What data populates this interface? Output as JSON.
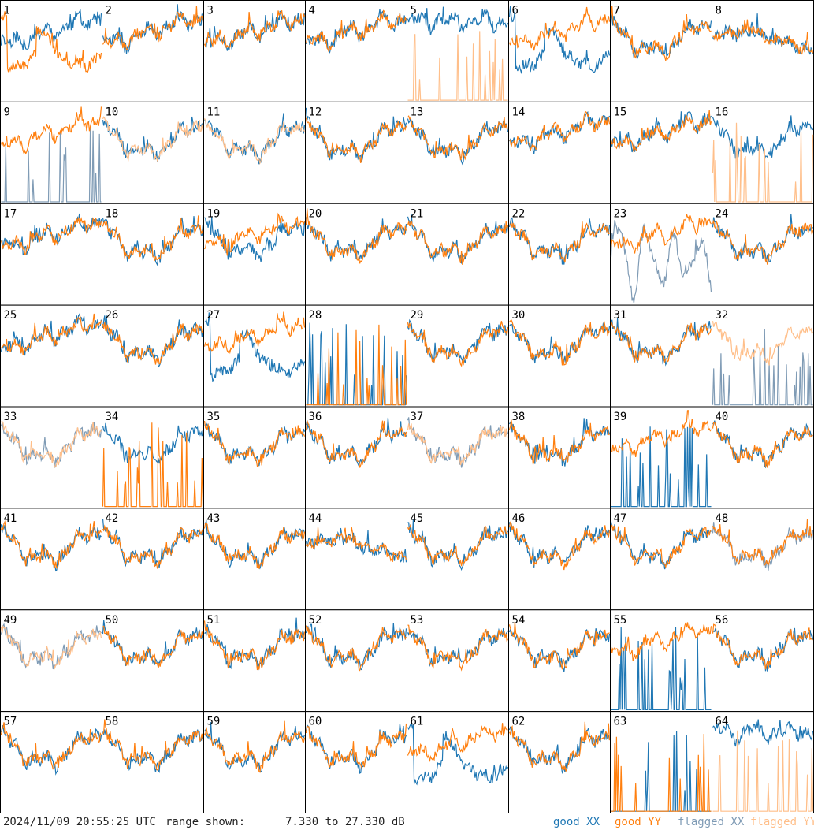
{
  "footer": {
    "timestamp": "2024/11/09 20:55:25 UTC",
    "range_label": "range shown:",
    "range_text": "7.330 to 27.330 dB"
  },
  "legend": [
    {
      "name": "good XX",
      "color": "#1f77b4"
    },
    {
      "name": "good YY",
      "color": "#ff7f0e"
    },
    {
      "name": "flagged XX",
      "color": "#7f9bb5"
    },
    {
      "name": "flagged YY",
      "color": "#ffbf8a"
    }
  ],
  "chart_data": {
    "type": "line",
    "title": "",
    "grid_rows": 8,
    "grid_cols": 8,
    "ylim": [
      7.33,
      27.33
    ],
    "y_unit": "dB",
    "tiles": [
      {
        "id": "1",
        "xx": "good",
        "yy": "good",
        "xx_profile": "rising",
        "yy_profile": "dip"
      },
      {
        "id": "2",
        "xx": "good",
        "yy": "good",
        "xx_profile": "rising",
        "yy_profile": "rising"
      },
      {
        "id": "3",
        "xx": "good",
        "yy": "good",
        "xx_profile": "rising",
        "yy_profile": "rising"
      },
      {
        "id": "4",
        "xx": "good",
        "yy": "good",
        "xx_profile": "rising",
        "yy_profile": "rising"
      },
      {
        "id": "5",
        "xx": "good",
        "yy": "flagged",
        "xx_profile": "high",
        "yy_profile": "spikes"
      },
      {
        "id": "6",
        "xx": "good",
        "yy": "good",
        "xx_profile": "dip",
        "yy_profile": "rising"
      },
      {
        "id": "7",
        "xx": "good",
        "yy": "good",
        "xx_profile": "valley",
        "yy_profile": "valley"
      },
      {
        "id": "8",
        "xx": "good",
        "yy": "good",
        "xx_profile": "flat",
        "yy_profile": "flat"
      },
      {
        "id": "9",
        "xx": "flagged",
        "yy": "good",
        "xx_profile": "spikes",
        "yy_profile": "rising"
      },
      {
        "id": "10",
        "xx": "good",
        "yy": "flagged",
        "xx_profile": "valley",
        "yy_profile": "valley"
      },
      {
        "id": "11",
        "xx": "good",
        "yy": "flagged",
        "xx_profile": "valley",
        "yy_profile": "valley"
      },
      {
        "id": "12",
        "xx": "good",
        "yy": "good",
        "xx_profile": "valley",
        "yy_profile": "valley"
      },
      {
        "id": "13",
        "xx": "good",
        "yy": "good",
        "xx_profile": "valley",
        "yy_profile": "valley"
      },
      {
        "id": "14",
        "xx": "good",
        "yy": "good",
        "xx_profile": "rising",
        "yy_profile": "rising"
      },
      {
        "id": "15",
        "xx": "good",
        "yy": "good",
        "xx_profile": "rising",
        "yy_profile": "rising"
      },
      {
        "id": "16",
        "xx": "good",
        "yy": "flagged",
        "xx_profile": "valley",
        "yy_profile": "spikes"
      },
      {
        "id": "17",
        "xx": "good",
        "yy": "good",
        "xx_profile": "rising",
        "yy_profile": "rising"
      },
      {
        "id": "18",
        "xx": "good",
        "yy": "good",
        "xx_profile": "valley",
        "yy_profile": "valley"
      },
      {
        "id": "19",
        "xx": "good",
        "yy": "good",
        "xx_profile": "valley",
        "yy_profile": "rising"
      },
      {
        "id": "20",
        "xx": "good",
        "yy": "good",
        "xx_profile": "valley",
        "yy_profile": "valley"
      },
      {
        "id": "21",
        "xx": "good",
        "yy": "good",
        "xx_profile": "valley",
        "yy_profile": "valley"
      },
      {
        "id": "22",
        "xx": "good",
        "yy": "good",
        "xx_profile": "valley",
        "yy_profile": "valley"
      },
      {
        "id": "23",
        "xx": "flagged",
        "yy": "good",
        "xx_profile": "noise",
        "yy_profile": "rising"
      },
      {
        "id": "24",
        "xx": "good",
        "yy": "good",
        "xx_profile": "valley",
        "yy_profile": "valley"
      },
      {
        "id": "25",
        "xx": "good",
        "yy": "good",
        "xx_profile": "rising",
        "yy_profile": "rising"
      },
      {
        "id": "26",
        "xx": "good",
        "yy": "good",
        "xx_profile": "valley",
        "yy_profile": "valley"
      },
      {
        "id": "27",
        "xx": "good",
        "yy": "good",
        "xx_profile": "dip",
        "yy_profile": "rising"
      },
      {
        "id": "28",
        "xx": "good",
        "yy": "good",
        "xx_profile": "spikes",
        "yy_profile": "spikes"
      },
      {
        "id": "29",
        "xx": "good",
        "yy": "good",
        "xx_profile": "valley",
        "yy_profile": "valley"
      },
      {
        "id": "30",
        "xx": "good",
        "yy": "good",
        "xx_profile": "valley",
        "yy_profile": "valley"
      },
      {
        "id": "31",
        "xx": "good",
        "yy": "good",
        "xx_profile": "valley",
        "yy_profile": "valley"
      },
      {
        "id": "32",
        "xx": "flagged",
        "yy": "flagged",
        "xx_profile": "spikes",
        "yy_profile": "valley"
      },
      {
        "id": "33",
        "xx": "flagged",
        "yy": "flagged",
        "xx_profile": "valley",
        "yy_profile": "valley"
      },
      {
        "id": "34",
        "xx": "good",
        "yy": "good",
        "xx_profile": "valley",
        "yy_profile": "spikes"
      },
      {
        "id": "35",
        "xx": "good",
        "yy": "good",
        "xx_profile": "valley",
        "yy_profile": "valley"
      },
      {
        "id": "36",
        "xx": "good",
        "yy": "good",
        "xx_profile": "valley",
        "yy_profile": "valley"
      },
      {
        "id": "37",
        "xx": "flagged",
        "yy": "flagged",
        "xx_profile": "valley",
        "yy_profile": "valley"
      },
      {
        "id": "38",
        "xx": "good",
        "yy": "good",
        "xx_profile": "valley",
        "yy_profile": "valley"
      },
      {
        "id": "39",
        "xx": "good",
        "yy": "good",
        "xx_profile": "spikes",
        "yy_profile": "rising"
      },
      {
        "id": "40",
        "xx": "good",
        "yy": "good",
        "xx_profile": "valley",
        "yy_profile": "valley"
      },
      {
        "id": "41",
        "xx": "good",
        "yy": "good",
        "xx_profile": "valley",
        "yy_profile": "valley"
      },
      {
        "id": "42",
        "xx": "good",
        "yy": "good",
        "xx_profile": "valley",
        "yy_profile": "valley"
      },
      {
        "id": "43",
        "xx": "good",
        "yy": "good",
        "xx_profile": "valley",
        "yy_profile": "valley"
      },
      {
        "id": "44",
        "xx": "good",
        "yy": "good",
        "xx_profile": "flat",
        "yy_profile": "flat"
      },
      {
        "id": "45",
        "xx": "good",
        "yy": "good",
        "xx_profile": "valley",
        "yy_profile": "valley"
      },
      {
        "id": "46",
        "xx": "good",
        "yy": "good",
        "xx_profile": "valley",
        "yy_profile": "valley"
      },
      {
        "id": "47",
        "xx": "good",
        "yy": "good",
        "xx_profile": "valley",
        "yy_profile": "valley"
      },
      {
        "id": "48",
        "xx": "flagged",
        "yy": "good",
        "xx_profile": "valley",
        "yy_profile": "valley"
      },
      {
        "id": "49",
        "xx": "flagged",
        "yy": "flagged",
        "xx_profile": "valley",
        "yy_profile": "valley"
      },
      {
        "id": "50",
        "xx": "good",
        "yy": "good",
        "xx_profile": "valley",
        "yy_profile": "valley"
      },
      {
        "id": "51",
        "xx": "good",
        "yy": "good",
        "xx_profile": "valley",
        "yy_profile": "valley"
      },
      {
        "id": "52",
        "xx": "good",
        "yy": "good",
        "xx_profile": "valley",
        "yy_profile": "valley"
      },
      {
        "id": "53",
        "xx": "good",
        "yy": "good",
        "xx_profile": "valley",
        "yy_profile": "valley"
      },
      {
        "id": "54",
        "xx": "good",
        "yy": "good",
        "xx_profile": "valley",
        "yy_profile": "valley"
      },
      {
        "id": "55",
        "xx": "good",
        "yy": "good",
        "xx_profile": "spikes",
        "yy_profile": "rising"
      },
      {
        "id": "56",
        "xx": "good",
        "yy": "good",
        "xx_profile": "valley",
        "yy_profile": "valley"
      },
      {
        "id": "57",
        "xx": "good",
        "yy": "good",
        "xx_profile": "valley",
        "yy_profile": "valley"
      },
      {
        "id": "58",
        "xx": "good",
        "yy": "good",
        "xx_profile": "valley",
        "yy_profile": "valley"
      },
      {
        "id": "59",
        "xx": "good",
        "yy": "good",
        "xx_profile": "valley",
        "yy_profile": "valley"
      },
      {
        "id": "60",
        "xx": "good",
        "yy": "good",
        "xx_profile": "valley",
        "yy_profile": "valley"
      },
      {
        "id": "61",
        "xx": "good",
        "yy": "good",
        "xx_profile": "dip",
        "yy_profile": "rising"
      },
      {
        "id": "62",
        "xx": "good",
        "yy": "good",
        "xx_profile": "valley",
        "yy_profile": "valley"
      },
      {
        "id": "63",
        "xx": "good",
        "yy": "good",
        "xx_profile": "spikes",
        "yy_profile": "spikes"
      },
      {
        "id": "64",
        "xx": "good",
        "yy": "flagged",
        "xx_profile": "high",
        "yy_profile": "spikes"
      }
    ]
  }
}
